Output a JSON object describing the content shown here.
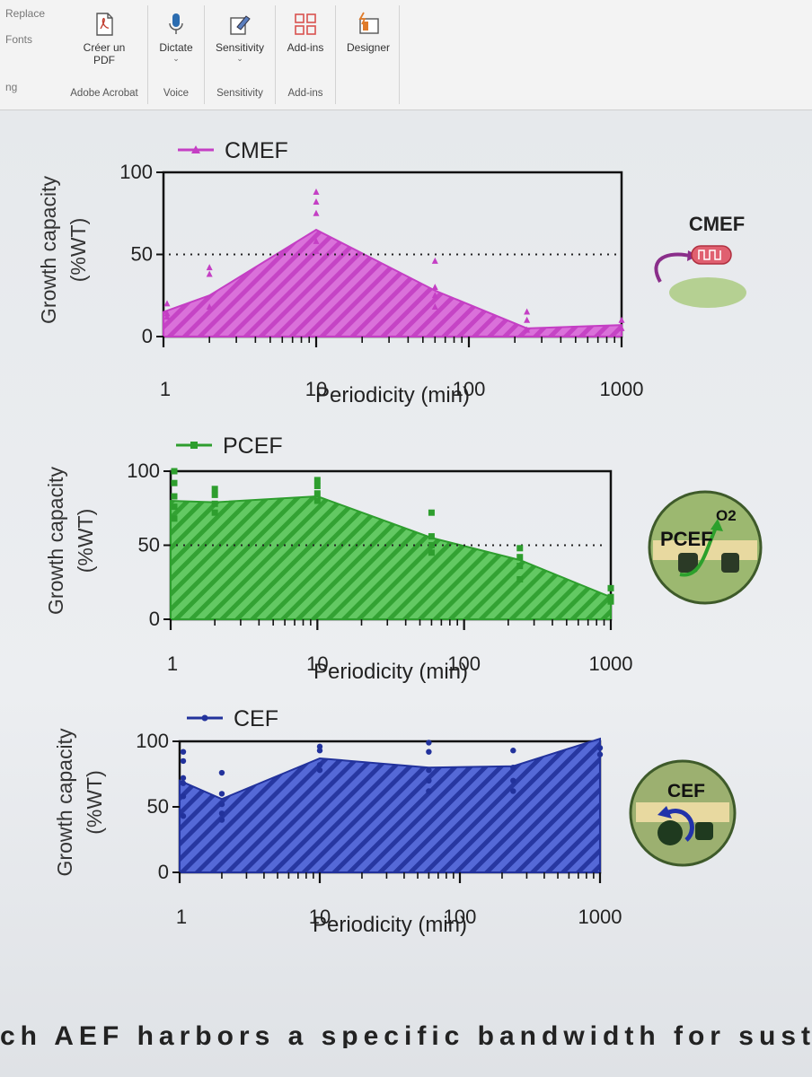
{
  "ribbon": {
    "left_items": [
      "Replace",
      "Fonts",
      "ng"
    ],
    "groups": [
      {
        "buttons": [
          {
            "label": "Créer un PDF",
            "icon": "create-pdf-icon"
          }
        ],
        "group_label": "Adobe Acrobat"
      },
      {
        "buttons": [
          {
            "label": "Dictate",
            "icon": "microphone-icon",
            "has_caret": true
          }
        ],
        "group_label": "Voice"
      },
      {
        "buttons": [
          {
            "label": "Sensitivity",
            "icon": "sensitivity-icon",
            "has_caret": true
          }
        ],
        "group_label": "Sensitivity"
      },
      {
        "buttons": [
          {
            "label": "Add-ins",
            "icon": "add-ins-grid-icon"
          }
        ],
        "group_label": "Add-ins"
      },
      {
        "buttons": [
          {
            "label": "Designer",
            "icon": "designer-icon"
          }
        ],
        "group_label": ""
      }
    ],
    "colors": {
      "addins_red": "#d9534f",
      "designer_orange": "#e07b2a",
      "mic_blue": "#2b6cb0"
    }
  },
  "document": {
    "bottom_text": "ch AEF harbors a specific bandwidth for sustaining the"
  },
  "chart_data": [
    {
      "type": "area",
      "legend": "CMEF",
      "side_label": "CMEF",
      "ylabel_line1": "Growth capacity",
      "ylabel_line2": "(%WT)",
      "xlabel": "Periodicity (min)",
      "x_scale": "log",
      "xlim": [
        1,
        1000
      ],
      "ylim": [
        0,
        100
      ],
      "yticks": [
        "0",
        "50",
        "100"
      ],
      "xticks": [
        "1",
        "10",
        "100",
        "1000"
      ],
      "dotted_reference": 50,
      "color": "#c43fc4",
      "fill": "#d96ad9",
      "marker": "triangle",
      "x": [
        1,
        2,
        10,
        60,
        240,
        1000
      ],
      "y": [
        15,
        25,
        65,
        28,
        5,
        7
      ],
      "points": [
        {
          "x": 1,
          "y": 20
        },
        {
          "x": 1,
          "y": 14
        },
        {
          "x": 1,
          "y": 12
        },
        {
          "x": 2,
          "y": 42
        },
        {
          "x": 2,
          "y": 38
        },
        {
          "x": 2,
          "y": 18
        },
        {
          "x": 10,
          "y": 88
        },
        {
          "x": 10,
          "y": 82
        },
        {
          "x": 10,
          "y": 75
        },
        {
          "x": 10,
          "y": 58
        },
        {
          "x": 10,
          "y": 52
        },
        {
          "x": 60,
          "y": 46
        },
        {
          "x": 60,
          "y": 30
        },
        {
          "x": 60,
          "y": 25
        },
        {
          "x": 60,
          "y": 18
        },
        {
          "x": 240,
          "y": 15
        },
        {
          "x": 240,
          "y": 10
        },
        {
          "x": 240,
          "y": 4
        },
        {
          "x": 1000,
          "y": 10
        },
        {
          "x": 1000,
          "y": 5
        }
      ]
    },
    {
      "type": "area",
      "legend": "PCEF",
      "side_label": "PCEF",
      "side_label_extra": "O2",
      "ylabel_line1": "Growth capacity",
      "ylabel_line2": "(%WT)",
      "xlabel": "Periodicity (min)",
      "x_scale": "log",
      "xlim": [
        1,
        1000
      ],
      "ylim": [
        0,
        100
      ],
      "yticks": [
        "0",
        "50",
        "100"
      ],
      "xticks": [
        "1",
        "10",
        "100",
        "1000"
      ],
      "dotted_reference": 50,
      "color": "#2e9e2e",
      "fill": "#5cc75c",
      "marker": "square",
      "x": [
        1,
        2,
        10,
        60,
        240,
        1000
      ],
      "y": [
        80,
        79,
        83,
        55,
        40,
        15
      ],
      "points": [
        {
          "x": 1,
          "y": 100
        },
        {
          "x": 1,
          "y": 92
        },
        {
          "x": 1,
          "y": 83
        },
        {
          "x": 1,
          "y": 76
        },
        {
          "x": 1,
          "y": 68
        },
        {
          "x": 2,
          "y": 88
        },
        {
          "x": 2,
          "y": 84
        },
        {
          "x": 2,
          "y": 78
        },
        {
          "x": 2,
          "y": 72
        },
        {
          "x": 10,
          "y": 94
        },
        {
          "x": 10,
          "y": 90
        },
        {
          "x": 10,
          "y": 85
        },
        {
          "x": 10,
          "y": 80
        },
        {
          "x": 60,
          "y": 72
        },
        {
          "x": 60,
          "y": 56
        },
        {
          "x": 60,
          "y": 50
        },
        {
          "x": 60,
          "y": 45
        },
        {
          "x": 240,
          "y": 48
        },
        {
          "x": 240,
          "y": 42
        },
        {
          "x": 240,
          "y": 36
        },
        {
          "x": 240,
          "y": 27
        },
        {
          "x": 1000,
          "y": 21
        },
        {
          "x": 1000,
          "y": 15
        },
        {
          "x": 1000,
          "y": 12
        }
      ]
    },
    {
      "type": "area",
      "legend": "CEF",
      "side_label": "CEF",
      "ylabel_line1": "Growth capacity",
      "ylabel_line2": "(%WT)",
      "xlabel": "Periodicity (min)",
      "x_scale": "log",
      "xlim": [
        1,
        1000
      ],
      "ylim": [
        0,
        100
      ],
      "yticks": [
        "0",
        "50",
        "100"
      ],
      "xticks": [
        "1",
        "10",
        "100",
        "1000"
      ],
      "dotted_reference": null,
      "color": "#22329c",
      "fill": "#4d62d6",
      "marker": "circle",
      "x": [
        1,
        2,
        10,
        60,
        240,
        1000
      ],
      "y": [
        70,
        56,
        87,
        80,
        81,
        102
      ],
      "points": [
        {
          "x": 1,
          "y": 92
        },
        {
          "x": 1,
          "y": 85
        },
        {
          "x": 1,
          "y": 72
        },
        {
          "x": 1,
          "y": 68
        },
        {
          "x": 1,
          "y": 58
        },
        {
          "x": 1,
          "y": 43
        },
        {
          "x": 2,
          "y": 76
        },
        {
          "x": 2,
          "y": 60
        },
        {
          "x": 2,
          "y": 52
        },
        {
          "x": 2,
          "y": 45
        },
        {
          "x": 2,
          "y": 40
        },
        {
          "x": 10,
          "y": 96
        },
        {
          "x": 10,
          "y": 93
        },
        {
          "x": 10,
          "y": 82
        },
        {
          "x": 10,
          "y": 78
        },
        {
          "x": 60,
          "y": 99
        },
        {
          "x": 60,
          "y": 92
        },
        {
          "x": 60,
          "y": 78
        },
        {
          "x": 60,
          "y": 70
        },
        {
          "x": 60,
          "y": 62
        },
        {
          "x": 240,
          "y": 93
        },
        {
          "x": 240,
          "y": 80
        },
        {
          "x": 240,
          "y": 70
        },
        {
          "x": 240,
          "y": 62
        },
        {
          "x": 1000,
          "y": 95
        },
        {
          "x": 1000,
          "y": 90
        }
      ]
    }
  ]
}
